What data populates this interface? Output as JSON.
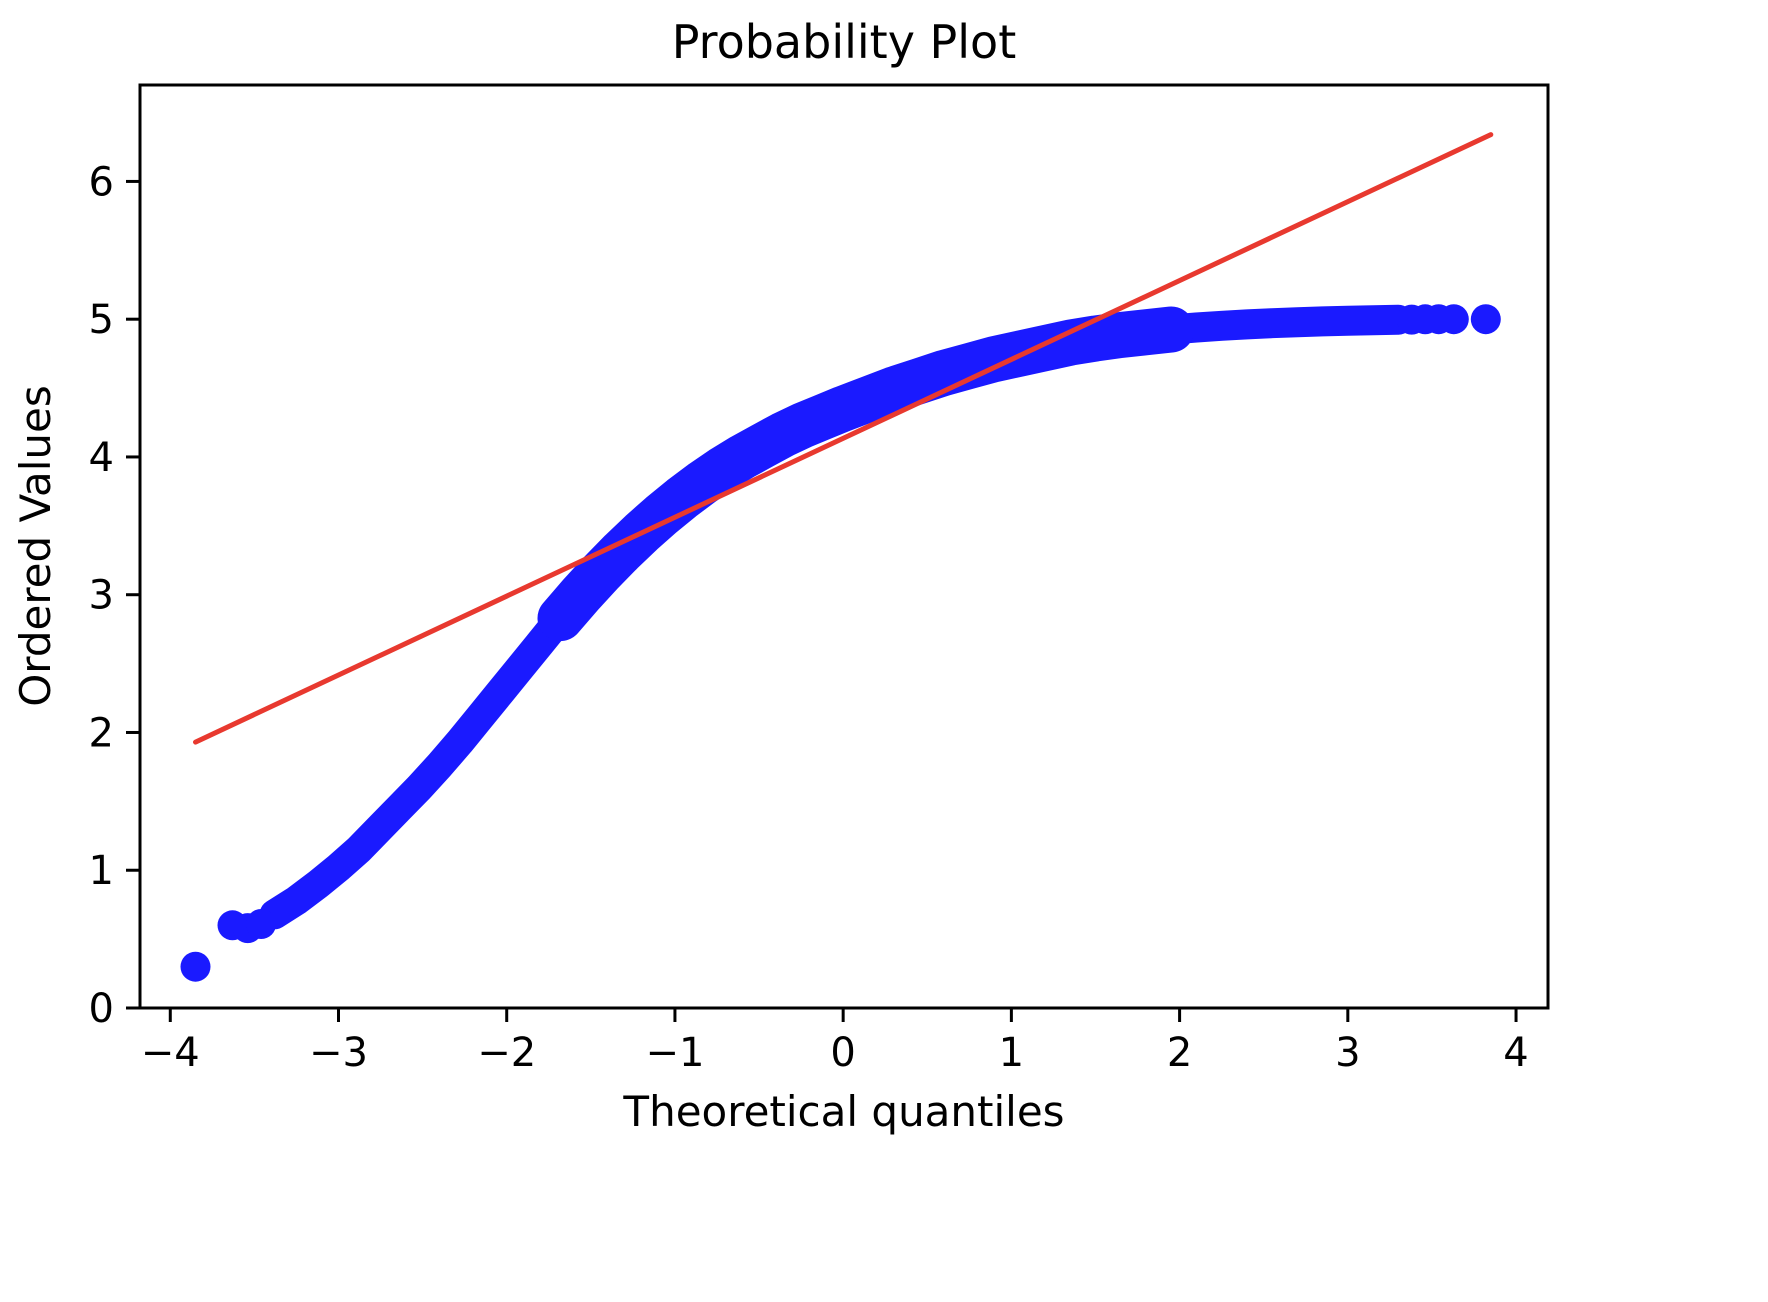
{
  "figure": {
    "background": "#ffffff"
  },
  "chart_data": {
    "type": "scatter",
    "title": "Probability Plot",
    "xlabel": "Theoretical quantiles",
    "ylabel": "Ordered Values",
    "grid": false,
    "legend": null,
    "xlim": [
      -4.18,
      4.19
    ],
    "ylim": [
      0,
      6.7
    ],
    "x_ticks": [
      -4,
      -3,
      -2,
      -1,
      0,
      1,
      2,
      3,
      4
    ],
    "x_tick_labels": [
      "−4",
      "−3",
      "−2",
      "−1",
      "0",
      "1",
      "2",
      "3",
      "4"
    ],
    "y_ticks": [
      0,
      1,
      2,
      3,
      4,
      5,
      6
    ],
    "y_tick_labels": [
      "0",
      "1",
      "2",
      "3",
      "4",
      "5",
      "6"
    ],
    "series": [
      {
        "name": "ordered-values",
        "type": "scatter",
        "color": "#1a1aff",
        "curve_points": [
          [
            -3.38,
            0.68
          ],
          [
            -3.25,
            0.78
          ],
          [
            -3.12,
            0.9
          ],
          [
            -3.0,
            1.02
          ],
          [
            -2.88,
            1.15
          ],
          [
            -2.76,
            1.3
          ],
          [
            -2.64,
            1.45
          ],
          [
            -2.52,
            1.6
          ],
          [
            -2.4,
            1.76
          ],
          [
            -2.28,
            1.93
          ],
          [
            -2.16,
            2.11
          ],
          [
            -2.04,
            2.29
          ],
          [
            -1.92,
            2.47
          ],
          [
            -1.8,
            2.65
          ],
          [
            -1.68,
            2.83
          ],
          [
            -1.56,
            3.0
          ],
          [
            -1.44,
            3.16
          ],
          [
            -1.32,
            3.31
          ],
          [
            -1.2,
            3.45
          ],
          [
            -1.08,
            3.58
          ],
          [
            -0.96,
            3.7
          ],
          [
            -0.84,
            3.81
          ],
          [
            -0.72,
            3.91
          ],
          [
            -0.6,
            4.0
          ],
          [
            -0.48,
            4.08
          ],
          [
            -0.36,
            4.16
          ],
          [
            -0.24,
            4.23
          ],
          [
            -0.12,
            4.29
          ],
          [
            0.0,
            4.35
          ],
          [
            0.15,
            4.42
          ],
          [
            0.3,
            4.49
          ],
          [
            0.45,
            4.55
          ],
          [
            0.6,
            4.61
          ],
          [
            0.75,
            4.66
          ],
          [
            0.9,
            4.71
          ],
          [
            1.05,
            4.75
          ],
          [
            1.2,
            4.79
          ],
          [
            1.35,
            4.83
          ],
          [
            1.5,
            4.86
          ],
          [
            1.65,
            4.885
          ],
          [
            1.8,
            4.905
          ],
          [
            1.95,
            4.925
          ],
          [
            2.1,
            4.94
          ],
          [
            2.25,
            4.952
          ],
          [
            2.4,
            4.962
          ],
          [
            2.55,
            4.971
          ],
          [
            2.7,
            4.978
          ],
          [
            2.85,
            4.984
          ],
          [
            3.0,
            4.989
          ],
          [
            3.15,
            4.993
          ],
          [
            3.3,
            4.996
          ]
        ],
        "tail_points": [
          [
            -3.85,
            0.3
          ],
          [
            -3.63,
            0.6
          ],
          [
            -3.54,
            0.58
          ],
          [
            -3.46,
            0.61
          ],
          [
            3.38,
            4.997
          ],
          [
            3.46,
            4.999
          ],
          [
            3.54,
            5.0
          ],
          [
            3.63,
            5.0
          ],
          [
            3.82,
            5.0
          ]
        ]
      },
      {
        "name": "least-squares-fit-line",
        "type": "line",
        "color": "#e8392f",
        "x": [
          -3.85,
          3.85
        ],
        "y": [
          1.93,
          6.34
        ]
      }
    ]
  }
}
